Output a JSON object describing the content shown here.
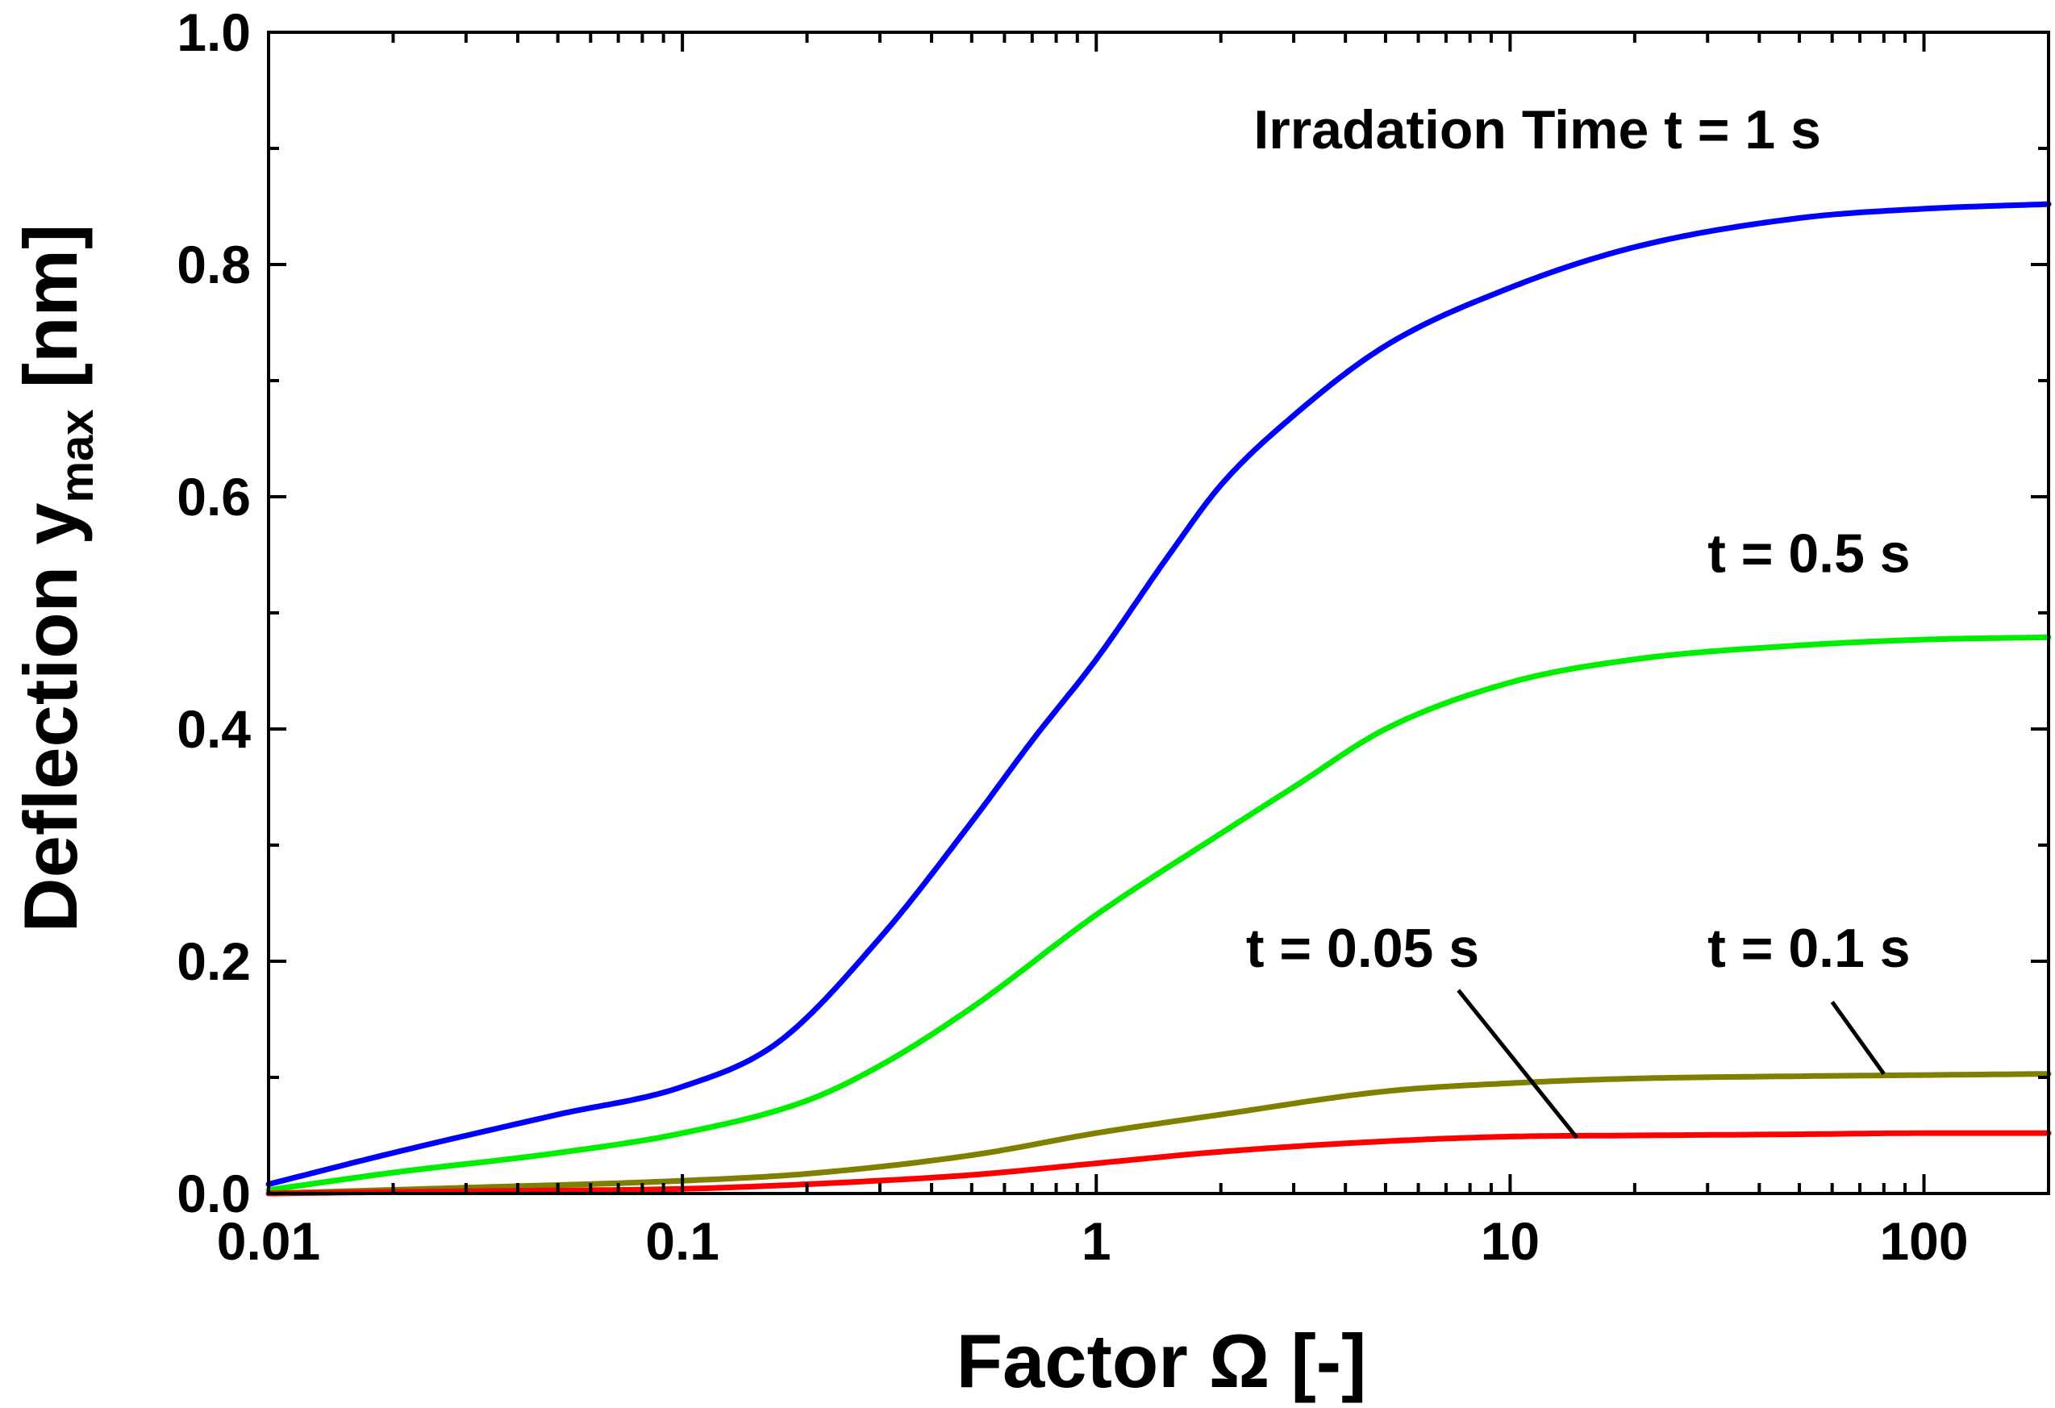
{
  "chart_data": {
    "type": "line",
    "title": "",
    "xlabel": {
      "prefix": "Factor ",
      "symbol": "Ω",
      "suffix": " [-]"
    },
    "ylabel": {
      "prefix": "Deflection y",
      "subscript": "max",
      "suffix": " [nm]"
    },
    "xscale": "log",
    "xlim": [
      0.01,
      200
    ],
    "ylim": [
      0.0,
      1.0
    ],
    "x_ticks": [
      0.01,
      0.1,
      1,
      10,
      100
    ],
    "x_tick_labels": [
      "0.01",
      "0.1",
      "1",
      "10",
      "100"
    ],
    "y_ticks": [
      0.0,
      0.2,
      0.4,
      0.6,
      0.8,
      1.0
    ],
    "y_tick_labels": [
      "0.0",
      "0.2",
      "0.4",
      "0.6",
      "0.8",
      "1.0"
    ],
    "grid": false,
    "series": [
      {
        "name": "t = 1 s",
        "color": "#0000ff",
        "x": [
          0.01,
          0.02,
          0.05,
          0.1,
          0.17,
          0.3,
          0.5,
          0.7,
          1,
          1.5,
          2,
          3,
          5,
          10,
          20,
          50,
          100,
          200
        ],
        "y": [
          0.008,
          0.035,
          0.068,
          0.092,
          0.13,
          0.22,
          0.32,
          0.39,
          0.46,
          0.55,
          0.61,
          0.67,
          0.73,
          0.78,
          0.815,
          0.84,
          0.848,
          0.852
        ]
      },
      {
        "name": "t = 0.5 s",
        "color": "#00ee00",
        "x": [
          0.01,
          0.02,
          0.05,
          0.1,
          0.2,
          0.3,
          0.5,
          1,
          2,
          3,
          5,
          10,
          20,
          50,
          100,
          200
        ],
        "y": [
          0.003,
          0.018,
          0.035,
          0.052,
          0.08,
          0.11,
          0.16,
          0.24,
          0.31,
          0.35,
          0.4,
          0.44,
          0.46,
          0.472,
          0.477,
          0.479
        ]
      },
      {
        "name": "t = 0.1 s",
        "color": "#808000",
        "x": [
          0.01,
          0.03,
          0.1,
          0.2,
          0.5,
          1,
          2,
          5,
          10,
          20,
          50,
          100,
          200
        ],
        "y": [
          0.0,
          0.005,
          0.011,
          0.017,
          0.033,
          0.052,
          0.068,
          0.088,
          0.095,
          0.099,
          0.101,
          0.102,
          0.103
        ]
      },
      {
        "name": "t = 0.05 s",
        "color": "#ff0000",
        "x": [
          0.01,
          0.03,
          0.1,
          0.2,
          0.5,
          1,
          2,
          5,
          10,
          20,
          50,
          100,
          200
        ],
        "y": [
          0.0,
          0.002,
          0.004,
          0.008,
          0.016,
          0.026,
          0.036,
          0.045,
          0.049,
          0.05,
          0.051,
          0.052,
          0.052
        ]
      }
    ],
    "annotations": [
      {
        "text": "Irradation Time t = 1 s",
        "series": "t = 1 s",
        "data_x": 2.4,
        "data_y": 0.9
      },
      {
        "text": "t = 0.5 s",
        "series": "t = 0.5 s",
        "data_x": 30,
        "data_y": 0.535
      },
      {
        "text": "t = 0.05 s",
        "series": "t = 0.05 s",
        "data_x": 2.3,
        "data_y": 0.195,
        "leader_from": [
          7.5,
          0.175
        ],
        "leader_to": [
          14.5,
          0.048
        ]
      },
      {
        "text": "t = 0.1 s",
        "series": "t = 0.1 s",
        "data_x": 30,
        "data_y": 0.195,
        "leader_from": [
          60,
          0.165
        ],
        "leader_to": [
          80,
          0.103
        ]
      }
    ]
  }
}
